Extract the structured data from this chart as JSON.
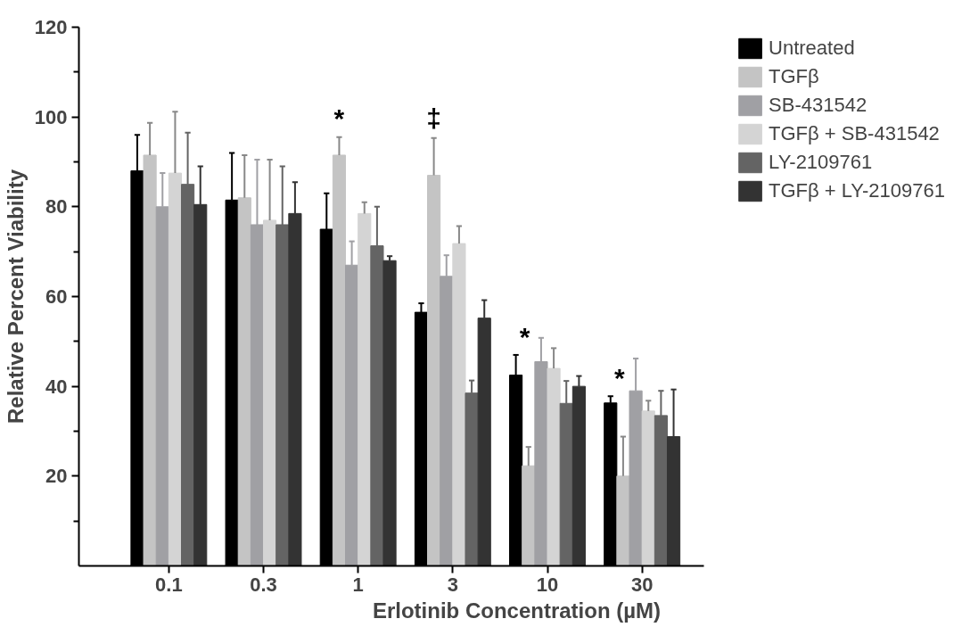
{
  "chart_data": {
    "type": "bar",
    "xlabel": "Erlotinib Concentration (µM)",
    "ylabel": "Relative Percent Viability",
    "categories": [
      "0.1",
      "0.3",
      "1",
      "3",
      "10",
      "30"
    ],
    "series": [
      {
        "name": "Untreated",
        "color": "#000000",
        "values": [
          88,
          81.5,
          75,
          56.5,
          42.5,
          36.3
        ],
        "errors": [
          [
            88,
            96
          ],
          [
            81.5,
            92
          ],
          [
            75,
            83
          ],
          [
            56.5,
            58.5
          ],
          [
            42.5,
            47
          ],
          [
            36.3,
            37.8
          ]
        ]
      },
      {
        "name": "TGFβ",
        "color": "#c4c4c4",
        "values": [
          91.5,
          82,
          91.5,
          87,
          22.3,
          20
        ],
        "errors": [
          [
            91.5,
            98.7
          ],
          [
            82,
            91.5
          ],
          [
            91.5,
            95.5
          ],
          [
            87,
            95.3
          ],
          [
            22.3,
            26.5
          ],
          [
            20,
            28.8
          ]
        ]
      },
      {
        "name": "SB-431542",
        "color": "#a0a0a4",
        "values": [
          80,
          76,
          67,
          64.5,
          45.5,
          39
        ],
        "errors": [
          [
            80,
            87.5
          ],
          [
            76,
            90.5
          ],
          [
            67,
            72.3
          ],
          [
            64.5,
            69.2
          ],
          [
            45.5,
            50.8
          ],
          [
            39,
            46.2
          ]
        ]
      },
      {
        "name": "TGFβ + SB-431542",
        "color": "#d4d4d4",
        "values": [
          87.5,
          77,
          78.5,
          71.8,
          44,
          34.5
        ],
        "errors": [
          [
            87.5,
            101.2
          ],
          [
            77,
            90.5
          ],
          [
            78.5,
            81
          ],
          [
            71.8,
            75.7
          ],
          [
            44,
            48.5
          ],
          [
            34.5,
            36.8
          ]
        ]
      },
      {
        "name": "LY-2109761",
        "color": "#646464",
        "values": [
          85,
          76,
          71.3,
          38.5,
          36.2,
          33.5
        ],
        "errors": [
          [
            85,
            96.5
          ],
          [
            76,
            89
          ],
          [
            71.3,
            80
          ],
          [
            38.5,
            41.3
          ],
          [
            36.2,
            41.2
          ],
          [
            33.5,
            39
          ]
        ]
      },
      {
        "name": "TGFβ + LY-2109761",
        "color": "#333333",
        "values": [
          80.5,
          78.5,
          68,
          55.2,
          40,
          28.8
        ],
        "errors": [
          [
            80.5,
            89
          ],
          [
            78.5,
            85.5
          ],
          [
            68,
            69
          ],
          [
            55.2,
            59.2
          ],
          [
            40,
            42.3
          ],
          [
            28.8,
            39.3
          ]
        ]
      }
    ],
    "ylim": [
      0,
      120
    ],
    "yticks": [
      {
        "value": 10,
        "label": null
      },
      20,
      {
        "value": 30,
        "label": null
      },
      40,
      {
        "value": 50,
        "label": null
      },
      60,
      {
        "value": 70,
        "label": null
      },
      80,
      {
        "value": 90,
        "label": null
      },
      100,
      {
        "value": 110,
        "label": null
      },
      120
    ],
    "annotations": [
      "*",
      "‡",
      {
        "text": "*",
        "x": "10",
        "y": 42.5
      },
      {
        "text": "*",
        "x": "30",
        "y": 36.3
      }
    ],
    "legend": "top right",
    "grid": false
  }
}
